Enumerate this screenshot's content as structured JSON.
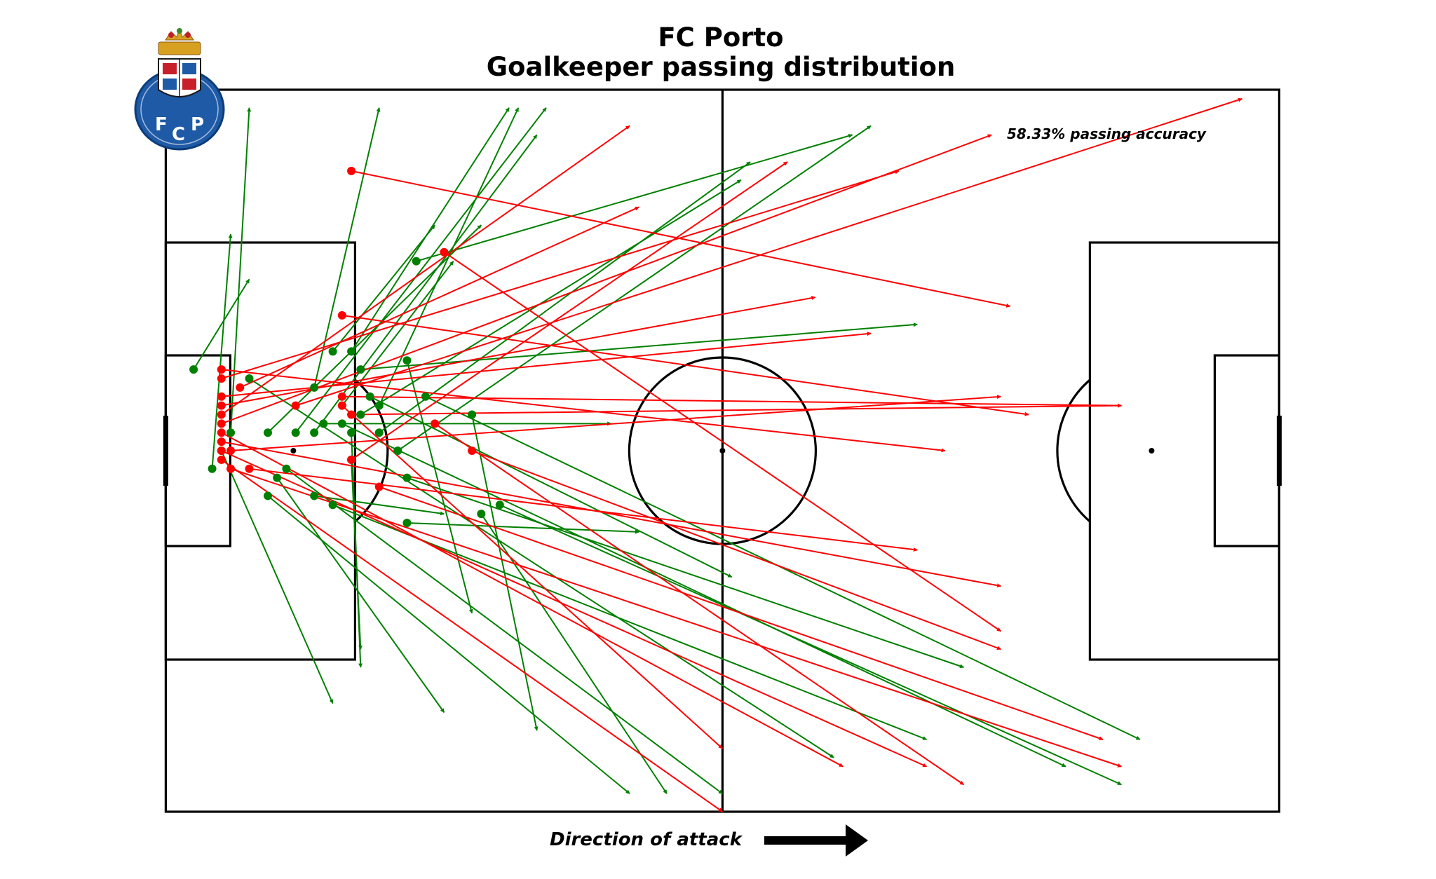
{
  "title_line1": "FC Porto",
  "title_line2": "Goalkeeper passing distribution",
  "accuracy_text": "58.33% passing accuracy",
  "direction_text": "Direction of attack",
  "colors": {
    "successful": "#008000",
    "unsuccessful": "#ff0000"
  },
  "chart_data": {
    "type": "scatter",
    "pitch": {
      "length": 120,
      "width": 80
    },
    "series": [
      {
        "name": "successful",
        "color": "#008000",
        "passes": [
          {
            "start": [
              5,
              42
            ],
            "end": [
              7,
              16
            ]
          },
          {
            "start": [
              3,
              31
            ],
            "end": [
              9,
              21
            ]
          },
          {
            "start": [
              11,
              45
            ],
            "end": [
              50,
              78
            ]
          },
          {
            "start": [
              12,
              43
            ],
            "end": [
              30,
              69
            ]
          },
          {
            "start": [
              13,
              42
            ],
            "end": [
              60,
              78
            ]
          },
          {
            "start": [
              18,
              46
            ],
            "end": [
              82,
              72
            ]
          },
          {
            "start": [
              17,
              37
            ],
            "end": [
              48,
              37
            ]
          },
          {
            "start": [
              19,
              35
            ],
            "end": [
              31,
              19
            ]
          },
          {
            "start": [
              26,
              48
            ],
            "end": [
              51,
              49
            ]
          },
          {
            "start": [
              26,
              43
            ],
            "end": [
              86,
              64
            ]
          },
          {
            "start": [
              14,
              38
            ],
            "end": [
              41,
              2
            ]
          },
          {
            "start": [
              7,
              38
            ],
            "end": [
              9,
              2
            ]
          },
          {
            "start": [
              6,
              40
            ],
            "end": [
              18,
              68
            ]
          },
          {
            "start": [
              9,
              32
            ],
            "end": [
              72,
              74
            ]
          },
          {
            "start": [
              16,
              33
            ],
            "end": [
              23,
              2
            ]
          },
          {
            "start": [
              16,
              38
            ],
            "end": [
              40,
              5
            ]
          },
          {
            "start": [
              18,
              29
            ],
            "end": [
              29,
              15
            ]
          },
          {
            "start": [
              20,
              29
            ],
            "end": [
              37,
              2
            ]
          },
          {
            "start": [
              19,
              37
            ],
            "end": [
              97,
              75
            ]
          },
          {
            "start": [
              21,
              36
            ],
            "end": [
              62,
              10
            ]
          },
          {
            "start": [
              23,
              35
            ],
            "end": [
              38,
              2
            ]
          },
          {
            "start": [
              22,
              34
            ],
            "end": [
              61,
              54
            ]
          },
          {
            "start": [
              20,
              38
            ],
            "end": [
              21,
              64
            ]
          },
          {
            "start": [
              11,
              38
            ],
            "end": [
              34,
              15
            ]
          },
          {
            "start": [
              21,
              31
            ],
            "end": [
              81,
              26
            ]
          },
          {
            "start": [
              16,
              45
            ],
            "end": [
              30,
              47
            ]
          },
          {
            "start": [
              23,
              38
            ],
            "end": [
              63,
              8
            ]
          },
          {
            "start": [
              26,
              30
            ],
            "end": [
              33,
              58
            ]
          },
          {
            "start": [
              28,
              34
            ],
            "end": [
              105,
              72
            ]
          },
          {
            "start": [
              20,
              41
            ],
            "end": [
              21,
              62
            ]
          },
          {
            "start": [
              34,
              47
            ],
            "end": [
              54,
              78
            ]
          },
          {
            "start": [
              33,
              36
            ],
            "end": [
              40,
              71
            ]
          },
          {
            "start": [
              25,
              40
            ],
            "end": [
              76,
              4
            ]
          },
          {
            "start": [
              36,
              46
            ],
            "end": [
              103,
              77
            ]
          },
          {
            "start": [
              27,
              19
            ],
            "end": [
              74,
              5
            ]
          }
        ]
      },
      {
        "name": "unsuccessful",
        "color": "#ff0000",
        "passes": [
          {
            "start": [
              6,
              41
            ],
            "end": [
              60,
              80
            ]
          },
          {
            "start": [
              6,
              38
            ],
            "end": [
              73,
              75
            ]
          },
          {
            "start": [
              6,
              40
            ],
            "end": [
              82,
              75
            ]
          },
          {
            "start": [
              6,
              36
            ],
            "end": [
              50,
              4
            ]
          },
          {
            "start": [
              6,
              37
            ],
            "end": [
              89,
              5
            ]
          },
          {
            "start": [
              6,
              35
            ],
            "end": [
              70,
              23
            ]
          },
          {
            "start": [
              6,
              39
            ],
            "end": [
              90,
              55
            ]
          },
          {
            "start": [
              6,
              34
            ],
            "end": [
              76,
              27
            ]
          },
          {
            "start": [
              6,
              32
            ],
            "end": [
              79,
              9
            ]
          },
          {
            "start": [
              6,
              31
            ],
            "end": [
              84,
              40
            ]
          },
          {
            "start": [
              7,
              40
            ],
            "end": [
              90,
              34
            ]
          },
          {
            "start": [
              7,
              42
            ],
            "end": [
              103,
              75
            ]
          },
          {
            "start": [
              9,
              42
            ],
            "end": [
              81,
              51
            ]
          },
          {
            "start": [
              14,
              35
            ],
            "end": [
              116,
              1
            ]
          },
          {
            "start": [
              19,
              35
            ],
            "end": [
              60,
              73
            ]
          },
          {
            "start": [
              19,
              25
            ],
            "end": [
              93,
              36
            ]
          },
          {
            "start": [
              20,
              41
            ],
            "end": [
              67,
              8
            ]
          },
          {
            "start": [
              20,
              36
            ],
            "end": [
              103,
              35
            ]
          },
          {
            "start": [
              23,
              44
            ],
            "end": [
              101,
              72
            ]
          },
          {
            "start": [
              33,
              40
            ],
            "end": [
              90,
              62
            ]
          },
          {
            "start": [
              30,
              18
            ],
            "end": [
              90,
              60
            ]
          },
          {
            "start": [
              20,
              9
            ],
            "end": [
              91,
              24
            ]
          },
          {
            "start": [
              8,
              33
            ],
            "end": [
              51,
              13
            ]
          },
          {
            "start": [
              19,
              34
            ],
            "end": [
              103,
              35
            ]
          },
          {
            "start": [
              29,
              37
            ],
            "end": [
              86,
              77
            ]
          }
        ]
      }
    ],
    "successful_count": 35,
    "total_count": 60,
    "accuracy_percent": 58.33
  }
}
